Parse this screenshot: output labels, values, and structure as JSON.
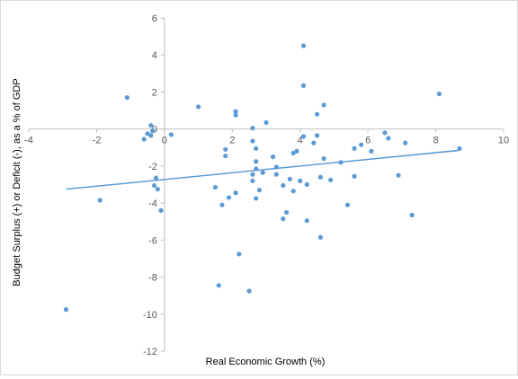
{
  "chart_data": {
    "type": "scatter",
    "xlabel": "Real Economic Growth (%)",
    "ylabel": "Budget Surplus (+) or Deficit (-), as a % of GDP",
    "xlim": [
      -4,
      10
    ],
    "ylim": [
      -12,
      6
    ],
    "x_ticks": [
      "-4",
      "-2",
      "0",
      "2",
      "4",
      "6",
      "8",
      "10"
    ],
    "y_ticks": [
      "-12",
      "-10",
      "-8",
      "-6",
      "-4",
      "-2",
      "0",
      "2",
      "4",
      "6"
    ],
    "grid": false,
    "marker_color": "#5b9bd5",
    "trendline_color": "#5b9bd5",
    "trendline": {
      "x": [
        -2.9,
        8.7
      ],
      "y": [
        -3.25,
        -1.15
      ]
    },
    "points": [
      {
        "x": -2.9,
        "y": -9.75
      },
      {
        "x": -1.9,
        "y": -3.85
      },
      {
        "x": -1.1,
        "y": 1.7
      },
      {
        "x": -0.6,
        "y": -0.55
      },
      {
        "x": -0.5,
        "y": -0.25
      },
      {
        "x": -0.4,
        "y": 0.2
      },
      {
        "x": -0.4,
        "y": -0.35
      },
      {
        "x": -0.35,
        "y": -0.1
      },
      {
        "x": -0.3,
        "y": -3.05
      },
      {
        "x": -0.25,
        "y": -2.65
      },
      {
        "x": -0.2,
        "y": -3.25
      },
      {
        "x": -0.1,
        "y": -4.4
      },
      {
        "x": 0.2,
        "y": -0.3
      },
      {
        "x": 1.0,
        "y": 1.2
      },
      {
        "x": 1.5,
        "y": -3.15
      },
      {
        "x": 1.6,
        "y": -8.45
      },
      {
        "x": 1.7,
        "y": -4.1
      },
      {
        "x": 1.8,
        "y": -1.1
      },
      {
        "x": 1.8,
        "y": -1.45
      },
      {
        "x": 1.9,
        "y": -3.7
      },
      {
        "x": 2.1,
        "y": 0.95
      },
      {
        "x": 2.1,
        "y": 0.75
      },
      {
        "x": 2.1,
        "y": -3.45
      },
      {
        "x": 2.2,
        "y": -6.75
      },
      {
        "x": 2.5,
        "y": -8.75
      },
      {
        "x": 2.6,
        "y": 0.05
      },
      {
        "x": 2.6,
        "y": -0.65
      },
      {
        "x": 2.6,
        "y": -2.45
      },
      {
        "x": 2.6,
        "y": -2.8
      },
      {
        "x": 2.7,
        "y": -1.05
      },
      {
        "x": 2.7,
        "y": -1.75
      },
      {
        "x": 2.7,
        "y": -2.15
      },
      {
        "x": 2.7,
        "y": -3.75
      },
      {
        "x": 2.8,
        "y": -3.3
      },
      {
        "x": 2.9,
        "y": -2.35
      },
      {
        "x": 3.0,
        "y": 0.35
      },
      {
        "x": 3.2,
        "y": -1.5
      },
      {
        "x": 3.3,
        "y": -2.05
      },
      {
        "x": 3.3,
        "y": -2.45
      },
      {
        "x": 3.5,
        "y": -3.05
      },
      {
        "x": 3.5,
        "y": -4.85
      },
      {
        "x": 3.6,
        "y": -4.5
      },
      {
        "x": 3.7,
        "y": -2.7
      },
      {
        "x": 3.8,
        "y": -3.35
      },
      {
        "x": 3.8,
        "y": -1.3
      },
      {
        "x": 3.9,
        "y": -1.2
      },
      {
        "x": 4.0,
        "y": -2.8
      },
      {
        "x": 4.1,
        "y": 4.5
      },
      {
        "x": 4.1,
        "y": 2.35
      },
      {
        "x": 4.1,
        "y": -0.4
      },
      {
        "x": 4.2,
        "y": -3.0
      },
      {
        "x": 4.2,
        "y": -4.95
      },
      {
        "x": 4.4,
        "y": -0.75
      },
      {
        "x": 4.5,
        "y": 0.8
      },
      {
        "x": 4.5,
        "y": -0.35
      },
      {
        "x": 4.6,
        "y": -2.6
      },
      {
        "x": 4.6,
        "y": -5.85
      },
      {
        "x": 4.7,
        "y": 1.3
      },
      {
        "x": 4.7,
        "y": -1.6
      },
      {
        "x": 4.9,
        "y": -2.75
      },
      {
        "x": 5.2,
        "y": -1.8
      },
      {
        "x": 5.4,
        "y": -4.1
      },
      {
        "x": 5.6,
        "y": -2.55
      },
      {
        "x": 5.6,
        "y": -1.05
      },
      {
        "x": 5.8,
        "y": -0.85
      },
      {
        "x": 6.1,
        "y": -1.2
      },
      {
        "x": 6.5,
        "y": -0.2
      },
      {
        "x": 6.6,
        "y": -0.5
      },
      {
        "x": 6.9,
        "y": -2.5
      },
      {
        "x": 7.1,
        "y": -0.75
      },
      {
        "x": 7.3,
        "y": -4.65
      },
      {
        "x": 8.1,
        "y": 1.9
      },
      {
        "x": 8.7,
        "y": -1.05
      }
    ]
  }
}
